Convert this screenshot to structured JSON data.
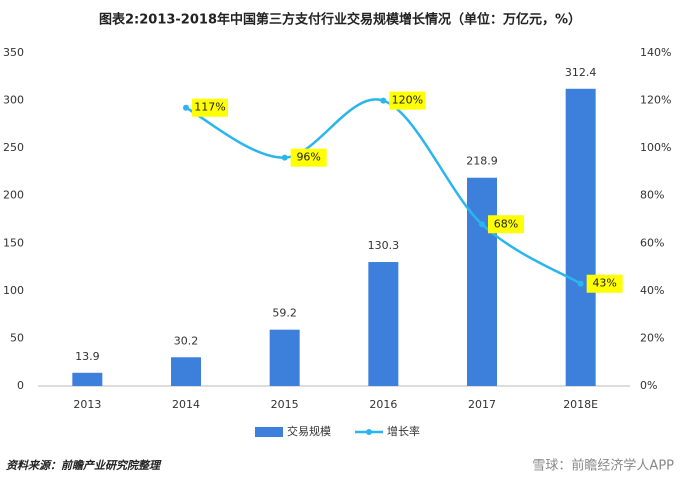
{
  "chart_data": {
    "type": "bar",
    "title": "图表2:2013-2018年中国第三方支付行业交易规模增长情况（单位：万亿元，%）",
    "categories": [
      "2013",
      "2014",
      "2015",
      "2016",
      "2017",
      "2018E"
    ],
    "series": [
      {
        "name": "交易规模",
        "type": "bar",
        "color": "#3d80dc",
        "values": [
          13.9,
          30.2,
          59.2,
          130.3,
          218.9,
          312.4
        ]
      },
      {
        "name": "增长率",
        "type": "line",
        "axis": "y2",
        "color": "#2bb5ee",
        "values": [
          null,
          117,
          96,
          120,
          68,
          43
        ],
        "value_labels": [
          null,
          "117%",
          "96%",
          "120%",
          "68%",
          "43%"
        ]
      }
    ],
    "ylim": [
      0,
      350
    ],
    "yticks": [
      0,
      50,
      100,
      150,
      200,
      250,
      300,
      350
    ],
    "y2lim": [
      0,
      140
    ],
    "y2ticks": [
      {
        "value": 0,
        "label": "0%"
      },
      {
        "value": 20,
        "label": "20%"
      },
      {
        "value": 40,
        "label": "40%"
      },
      {
        "value": 60,
        "label": "60%"
      },
      {
        "value": 80,
        "label": "80%"
      },
      {
        "value": 100,
        "label": "100%"
      },
      {
        "value": 120,
        "label": "120%"
      },
      {
        "value": 140,
        "label": "140%"
      }
    ],
    "legend": "bottom",
    "source": "资料来源：前瞻产业研究院整理",
    "watermark": "雪球：前瞻经济学人APP"
  }
}
